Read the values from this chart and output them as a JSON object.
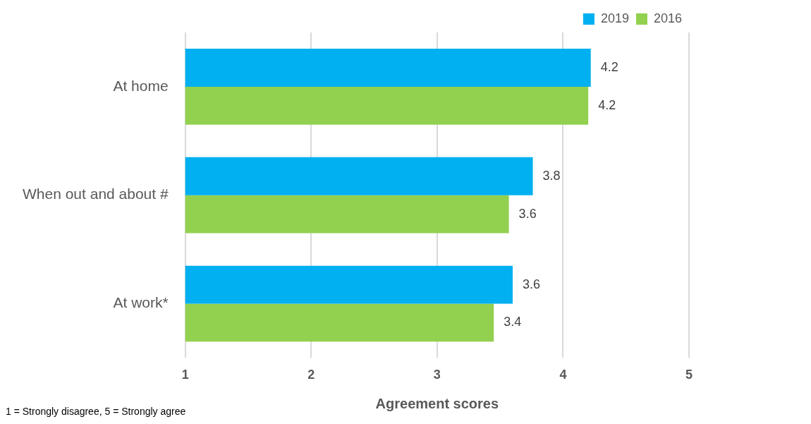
{
  "chart_data": {
    "type": "bar",
    "orientation": "horizontal",
    "xlabel": "Agreement scores",
    "categories": [
      "At home",
      "When out and about #",
      "At work*"
    ],
    "series": [
      {
        "name": "2019",
        "color": "#00b0f0",
        "values": [
          4.22,
          3.76,
          3.6
        ],
        "value_labels": [
          "4.2",
          "3.8",
          "3.6"
        ]
      },
      {
        "name": "2016",
        "color": "#92d050",
        "values": [
          4.2,
          3.57,
          3.45
        ],
        "value_labels": [
          "4.2",
          "3.6",
          "3.4"
        ]
      }
    ],
    "xlim": [
      1,
      5
    ],
    "xticks": [
      1,
      2,
      3,
      4,
      5
    ],
    "grid": "x",
    "legend": "top right",
    "annotations": [
      "1 = Strongly disagree, 5 = Strongly agree"
    ]
  }
}
